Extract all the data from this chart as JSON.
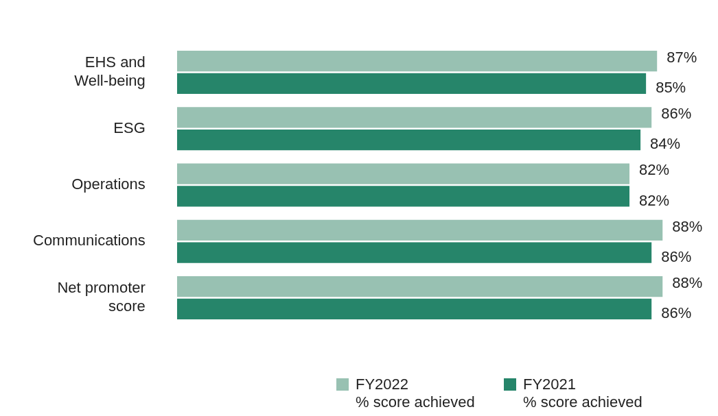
{
  "chart_data": {
    "type": "bar",
    "orientation": "horizontal",
    "legend": "bottom",
    "categories": [
      "EHS and Well-being",
      "ESG",
      "Operations",
      "Communications",
      "Net promoter score"
    ],
    "series": [
      {
        "name": "FY2022 % score achieved",
        "color": "#98c1b2",
        "values": [
          87,
          86,
          82,
          88,
          88
        ],
        "value_labels": [
          "87%",
          "86%",
          "82%",
          "88%",
          "88%"
        ]
      },
      {
        "name": "FY2021 % score achieved",
        "color": "#26856a",
        "values": [
          85,
          84,
          82,
          86,
          86
        ],
        "value_labels": [
          "85%",
          "84%",
          "82%",
          "86%",
          "86%"
        ]
      }
    ]
  }
}
